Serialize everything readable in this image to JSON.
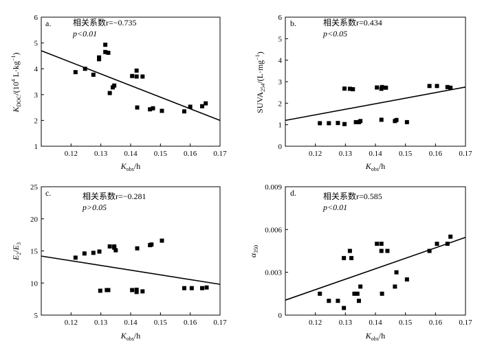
{
  "chart_data": [
    {
      "type": "scatter",
      "panel_label": "a.",
      "annotation_corr": "相关系数r=−0.735",
      "annotation_p": "p<0.01",
      "xlabel": "Kobs/h",
      "ylabel": "KDOC/(10^4 L·kg^−1)",
      "xlim": [
        0.11,
        0.17
      ],
      "ylim": [
        1,
        6
      ],
      "xticks": [
        "0.12",
        "0.13",
        "0.14",
        "0.15",
        "0.16",
        "0.17"
      ],
      "yticks": [
        "1",
        "2",
        "3",
        "4",
        "5",
        "6"
      ],
      "points": [
        [
          0.1215,
          3.87
        ],
        [
          0.1247,
          4.0
        ],
        [
          0.1275,
          3.77
        ],
        [
          0.1294,
          4.37
        ],
        [
          0.1294,
          4.44
        ],
        [
          0.1315,
          4.93
        ],
        [
          0.1315,
          4.65
        ],
        [
          0.1325,
          4.62
        ],
        [
          0.133,
          3.06
        ],
        [
          0.134,
          3.28
        ],
        [
          0.1345,
          3.35
        ],
        [
          0.1405,
          3.72
        ],
        [
          0.142,
          3.93
        ],
        [
          0.142,
          3.7
        ],
        [
          0.1422,
          2.5
        ],
        [
          0.144,
          3.7
        ],
        [
          0.1465,
          2.43
        ],
        [
          0.1475,
          2.47
        ],
        [
          0.1505,
          2.37
        ],
        [
          0.158,
          2.35
        ],
        [
          0.16,
          2.53
        ],
        [
          0.164,
          2.55
        ],
        [
          0.1652,
          2.66
        ]
      ],
      "fit_line": [
        [
          0.11,
          4.7
        ],
        [
          0.17,
          2.0
        ]
      ]
    },
    {
      "type": "scatter",
      "panel_label": "b.",
      "annotation_corr": "相关系数r=0.434",
      "annotation_p": "p<0.05",
      "xlabel": "Kobs/h",
      "ylabel": "SUVA254/(L·mg^−1)",
      "xlim": [
        0.11,
        0.17
      ],
      "ylim": [
        0,
        6
      ],
      "xticks": [
        "0.12",
        "0.13",
        "0.14",
        "0.15",
        "0.16",
        "0.17"
      ],
      "yticks": [
        "0",
        "1",
        "2",
        "3",
        "4",
        "5",
        "6"
      ],
      "points": [
        [
          0.1215,
          1.07
        ],
        [
          0.1245,
          1.07
        ],
        [
          0.1275,
          1.08
        ],
        [
          0.1297,
          1.03
        ],
        [
          0.1297,
          2.68
        ],
        [
          0.1315,
          2.67
        ],
        [
          0.1325,
          2.65
        ],
        [
          0.1335,
          1.12
        ],
        [
          0.1345,
          1.12
        ],
        [
          0.135,
          1.17
        ],
        [
          0.1405,
          2.73
        ],
        [
          0.142,
          1.23
        ],
        [
          0.142,
          2.67
        ],
        [
          0.1422,
          2.75
        ],
        [
          0.1435,
          2.72
        ],
        [
          0.1465,
          1.17
        ],
        [
          0.147,
          1.22
        ],
        [
          0.1505,
          1.12
        ],
        [
          0.158,
          2.8
        ],
        [
          0.1605,
          2.8
        ],
        [
          0.164,
          2.75
        ],
        [
          0.165,
          2.72
        ]
      ],
      "fit_line": [
        [
          0.11,
          1.2
        ],
        [
          0.17,
          2.75
        ]
      ]
    },
    {
      "type": "scatter",
      "panel_label": "c.",
      "annotation_corr": "相关系数r=−0.281",
      "annotation_p": "p>0.05",
      "xlabel": "Kobs/h",
      "ylabel": "E2/E3",
      "xlim": [
        0.11,
        0.17
      ],
      "ylim": [
        5,
        25
      ],
      "xticks": [
        "0.12",
        "0.13",
        "0.14",
        "0.15",
        "0.16",
        "0.17"
      ],
      "yticks": [
        "5",
        "10",
        "15",
        "20",
        "25"
      ],
      "points": [
        [
          0.1215,
          13.95
        ],
        [
          0.1245,
          14.6
        ],
        [
          0.1275,
          14.7
        ],
        [
          0.1295,
          14.9
        ],
        [
          0.1298,
          8.8
        ],
        [
          0.132,
          8.9
        ],
        [
          0.1325,
          8.9
        ],
        [
          0.133,
          15.7
        ],
        [
          0.1345,
          15.5
        ],
        [
          0.135,
          15.1
        ],
        [
          0.1345,
          15.7
        ],
        [
          0.1405,
          8.9
        ],
        [
          0.142,
          8.95
        ],
        [
          0.142,
          8.6
        ],
        [
          0.1422,
          15.4
        ],
        [
          0.144,
          8.7
        ],
        [
          0.1465,
          15.9
        ],
        [
          0.147,
          16.0
        ],
        [
          0.1505,
          16.6
        ],
        [
          0.158,
          9.2
        ],
        [
          0.1605,
          9.2
        ],
        [
          0.164,
          9.2
        ],
        [
          0.1655,
          9.3
        ]
      ],
      "fit_line": [
        [
          0.11,
          14.2
        ],
        [
          0.17,
          9.8
        ]
      ]
    },
    {
      "type": "scatter",
      "panel_label": "d.",
      "annotation_corr": "相关系数r=0.585",
      "annotation_p": "p<0.01",
      "xlabel": "Kobs/h",
      "ylabel": "α350",
      "xlim": [
        0.11,
        0.17
      ],
      "ylim": [
        0,
        0.009
      ],
      "xticks": [
        "0.12",
        "0.13",
        "0.14",
        "0.15",
        "0.16",
        "0.17"
      ],
      "yticks": [
        "0",
        "0.003",
        "0.006",
        "0.009"
      ],
      "points": [
        [
          0.1215,
          0.0015
        ],
        [
          0.1245,
          0.001
        ],
        [
          0.1275,
          0.001
        ],
        [
          0.1295,
          0.0005
        ],
        [
          0.1295,
          0.004
        ],
        [
          0.1315,
          0.0045
        ],
        [
          0.132,
          0.004
        ],
        [
          0.133,
          0.0015
        ],
        [
          0.134,
          0.0015
        ],
        [
          0.1345,
          0.001
        ],
        [
          0.135,
          0.002
        ],
        [
          0.1405,
          0.005
        ],
        [
          0.142,
          0.005
        ],
        [
          0.142,
          0.0045
        ],
        [
          0.1422,
          0.0015
        ],
        [
          0.144,
          0.0045
        ],
        [
          0.1465,
          0.002
        ],
        [
          0.147,
          0.003
        ],
        [
          0.1505,
          0.0025
        ],
        [
          0.158,
          0.0045
        ],
        [
          0.1605,
          0.005
        ],
        [
          0.164,
          0.005
        ],
        [
          0.165,
          0.0055
        ]
      ],
      "fit_line": [
        [
          0.11,
          0.00105
        ],
        [
          0.17,
          0.00545
        ]
      ]
    }
  ]
}
